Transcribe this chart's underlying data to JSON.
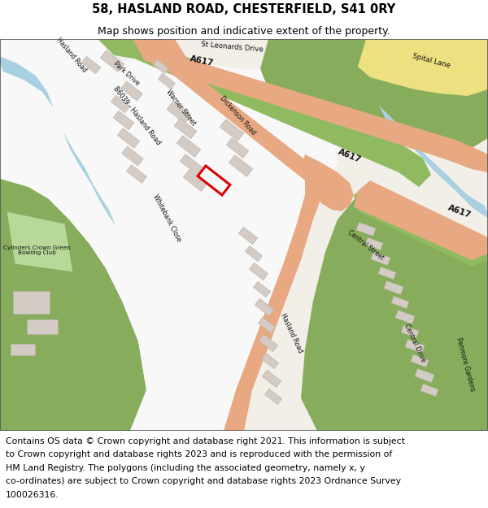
{
  "title": "58, HASLAND ROAD, CHESTERFIELD, S41 0RY",
  "subtitle": "Map shows position and indicative extent of the property.",
  "footer_lines": [
    "Contains OS data © Crown copyright and database right 2021. This information is subject",
    "to Crown copyright and database rights 2023 and is reproduced with the permission of",
    "HM Land Registry. The polygons (including the associated geometry, namely x, y",
    "co-ordinates) are subject to Crown copyright and database rights 2023 Ordnance Survey",
    "100026316."
  ],
  "title_fontsize": 10.5,
  "subtitle_fontsize": 9,
  "footer_fontsize": 7.8,
  "map_bg_color": "#f2efe9",
  "dark_green_color": "#87ad5c",
  "medium_green_color": "#a8c87a",
  "road_salmon_color": "#e8a882",
  "road_green_strip_color": "#8fba60",
  "road_yellow_color": "#ede080",
  "blue_river_color": "#a8d0e0",
  "white_urban_color": "#f8f8f8",
  "building_color": "#d4ccc4",
  "building_edge_color": "#b8b0a8",
  "red_outline_color": "#dd0000",
  "header_bg": "#ffffff",
  "footer_bg": "#ffffff",
  "border_color": "#888888",
  "light_green_park": "#b8d898"
}
